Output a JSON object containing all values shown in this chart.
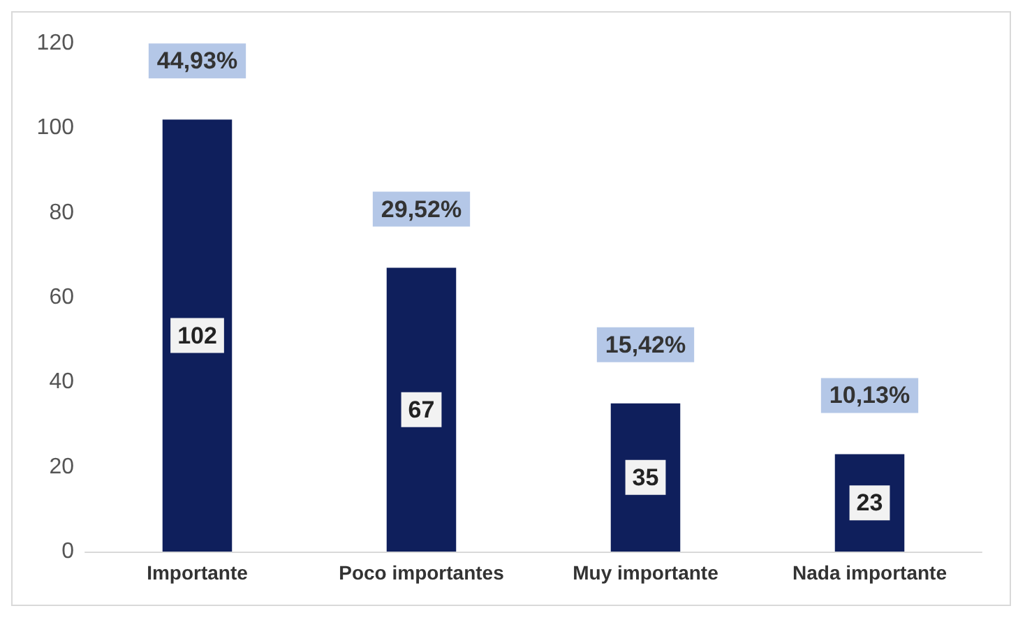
{
  "chart_data": {
    "type": "bar",
    "categories": [
      "Importante",
      "Poco importantes",
      "Muy importante",
      "Nada importante"
    ],
    "values": [
      102,
      67,
      35,
      23
    ],
    "color": "#0f1f5c",
    "ylim": [
      0,
      120
    ],
    "yticks": [
      0,
      20,
      40,
      60,
      80,
      100,
      120
    ],
    "grid": false,
    "data_labels": true,
    "annotations": [
      {
        "text": "44,93%",
        "x": "Importante",
        "y": 102
      },
      {
        "text": "29,52%",
        "x": "Poco importantes",
        "y": 67
      },
      {
        "text": "15,42%",
        "x": "Muy importante",
        "y": 35
      },
      {
        "text": "10,13%",
        "x": "Nada importante",
        "y": 23
      }
    ]
  }
}
